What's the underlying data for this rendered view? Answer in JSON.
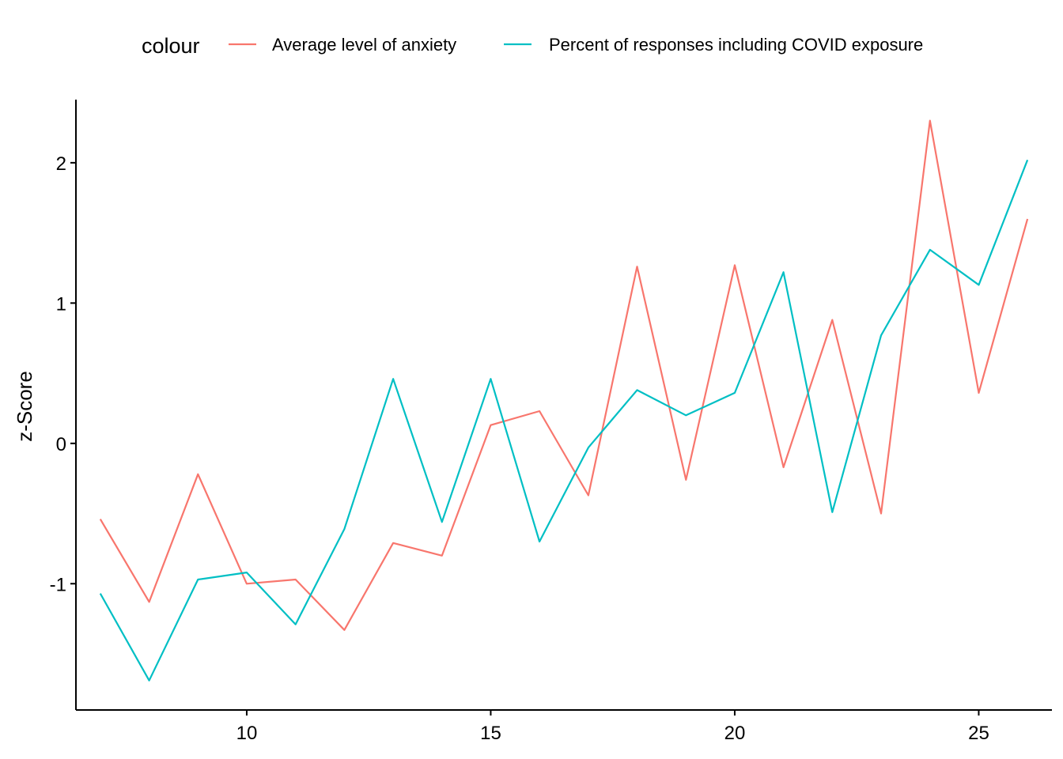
{
  "chart_data": {
    "type": "line",
    "xlabel": "",
    "ylabel": "z-Score",
    "xlim": [
      6.5,
      26.5
    ],
    "ylim": [
      -1.9,
      2.45
    ],
    "xticks": [
      10,
      15,
      20,
      25
    ],
    "yticks": [
      -1,
      0,
      1,
      2
    ],
    "grid": false,
    "legend": {
      "title": "colour",
      "position": "top"
    },
    "x": [
      7,
      8,
      9,
      10,
      11,
      12,
      13,
      14,
      15,
      16,
      17,
      18,
      19,
      20,
      21,
      22,
      23,
      24,
      25,
      26
    ],
    "series": [
      {
        "name": "Average level of anxiety",
        "color": "#F8766D",
        "values": [
          -0.54,
          -1.13,
          -0.22,
          -1.0,
          -0.97,
          -1.33,
          -0.71,
          -0.8,
          0.13,
          0.23,
          -0.37,
          1.26,
          -0.26,
          1.27,
          -0.17,
          0.88,
          -0.5,
          2.3,
          0.36,
          1.6
        ]
      },
      {
        "name": "Percent of responses including COVID exposure",
        "color": "#00BFC4",
        "values": [
          -1.07,
          -1.69,
          -0.97,
          -0.92,
          -1.29,
          -0.61,
          0.46,
          -0.56,
          0.46,
          -0.7,
          -0.03,
          0.38,
          0.2,
          0.36,
          1.22,
          -0.49,
          0.77,
          1.38,
          1.13,
          2.02
        ]
      }
    ]
  }
}
